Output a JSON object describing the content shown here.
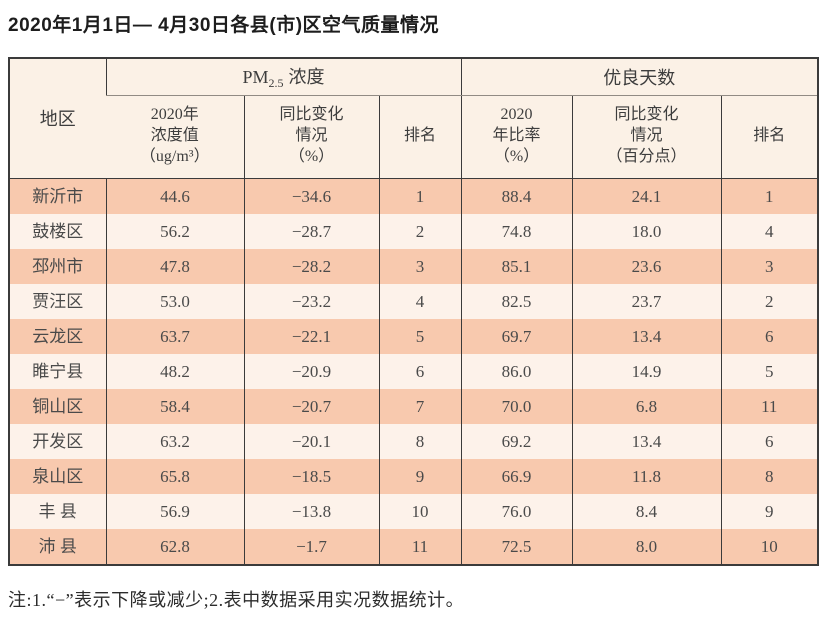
{
  "page": {
    "title": "2020年1月1日— 4月30日各县(市)区空气质量情况",
    "note": "注:1.“−”表示下降或减少;2.表中数据采用实况数据统计。"
  },
  "colors": {
    "row_odd_bg": "#f8c9ae",
    "row_even_bg": "#fdf2ea",
    "header_bg": "#fbf1e6",
    "border_dark": "#3b3b3b",
    "text": "#4a4a4a"
  },
  "table": {
    "header": {
      "region": "地区",
      "pm_group": {
        "prefix": "PM",
        "sub": "2.5",
        "suffix": "浓度"
      },
      "good_days_group": "优良天数",
      "sub_columns": [
        "2020年\n浓度值\n（ug/m³）",
        "同比变化\n情况\n（%）",
        "排名",
        "2020\n年比率\n（%）",
        "同比变化\n情况\n（百分点）",
        "排名"
      ]
    },
    "rows": [
      {
        "cells": [
          "新沂市",
          "44.6",
          "−34.6",
          "1",
          "88.4",
          "24.1",
          "1"
        ]
      },
      {
        "cells": [
          "鼓楼区",
          "56.2",
          "−28.7",
          "2",
          "74.8",
          "18.0",
          "4"
        ]
      },
      {
        "cells": [
          "邳州市",
          "47.8",
          "−28.2",
          "3",
          "85.1",
          "23.6",
          "3"
        ]
      },
      {
        "cells": [
          "贾汪区",
          "53.0",
          "−23.2",
          "4",
          "82.5",
          "23.7",
          "2"
        ]
      },
      {
        "cells": [
          "云龙区",
          "63.7",
          "−22.1",
          "5",
          "69.7",
          "13.4",
          "6"
        ]
      },
      {
        "cells": [
          "睢宁县",
          "48.2",
          "−20.9",
          "6",
          "86.0",
          "14.9",
          "5"
        ]
      },
      {
        "cells": [
          "铜山区",
          "58.4",
          "−20.7",
          "7",
          "70.0",
          "6.8",
          "11"
        ]
      },
      {
        "cells": [
          "开发区",
          "63.2",
          "−20.1",
          "8",
          "69.2",
          "13.4",
          "6"
        ]
      },
      {
        "cells": [
          "泉山区",
          "65.8",
          "−18.5",
          "9",
          "66.9",
          "11.8",
          "8"
        ]
      },
      {
        "cells": [
          "丰 县",
          "56.9",
          "−13.8",
          "10",
          "76.0",
          "8.4",
          "9"
        ]
      },
      {
        "cells": [
          "沛 县",
          "62.8",
          "−1.7",
          "11",
          "72.5",
          "8.0",
          "10"
        ]
      }
    ]
  }
}
